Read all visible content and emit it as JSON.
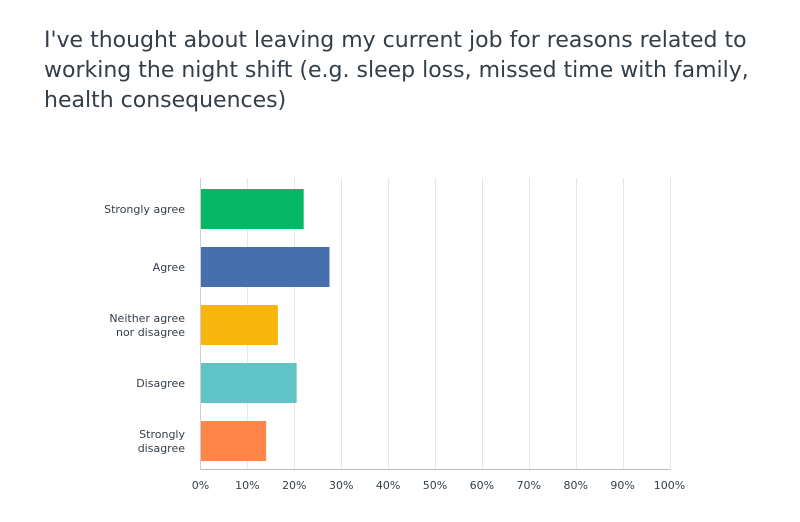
{
  "chart_data": {
    "type": "bar",
    "orientation": "horizontal",
    "title": "I've thought about leaving my current job for reasons related to working the night shift (e.g. sleep loss, missed time with family, health consequences)",
    "categories": [
      [
        "Strongly agree"
      ],
      [
        "Agree"
      ],
      [
        "Neither agree",
        "nor disagree"
      ],
      [
        "Disagree"
      ],
      [
        "Strongly",
        "disagree"
      ]
    ],
    "values": [
      22,
      27.5,
      16.5,
      20.5,
      14
    ],
    "colors": [
      "#05b865",
      "#4670ad",
      "#f7b50d",
      "#60c4c7",
      "#ff8549"
    ],
    "xlim": [
      0,
      100
    ],
    "xticks": [
      0,
      10,
      20,
      30,
      40,
      50,
      60,
      70,
      80,
      90,
      100
    ],
    "xtick_labels": [
      "0%",
      "10%",
      "20%",
      "30%",
      "40%",
      "50%",
      "60%",
      "70%",
      "80%",
      "90%",
      "100%"
    ],
    "xlabel": "",
    "ylabel": "",
    "grid": true,
    "legend": "none"
  }
}
